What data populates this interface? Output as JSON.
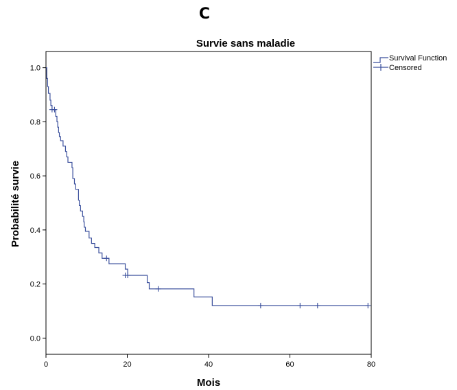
{
  "panel_letter": "C",
  "colors": {
    "series": "#3a4f9c",
    "axis": "#000000"
  },
  "chart_data": {
    "type": "line",
    "subtype": "kaplan-meier step",
    "title": "Survie sans maladie",
    "xlabel": "Mois",
    "ylabel": "Probabilité survie",
    "xlim": [
      0,
      80
    ],
    "ylim": [
      -0.06,
      1.06
    ],
    "xticks": [
      0,
      20,
      40,
      60,
      80
    ],
    "yticks": [
      0.0,
      0.2,
      0.4,
      0.6,
      0.8,
      1.0
    ],
    "xtick_labels": [
      "0",
      "20",
      "40",
      "60",
      "80"
    ],
    "ytick_labels": [
      "0.0",
      "0.2",
      "0.4",
      "0.6",
      "0.8",
      "1.0"
    ],
    "grid": false,
    "legend_position": "top-right, outside plot",
    "series": [
      {
        "name": "Survival Function",
        "points": [
          [
            0,
            1.0
          ],
          [
            0.2,
            0.96
          ],
          [
            0.4,
            0.93
          ],
          [
            0.6,
            0.905
          ],
          [
            1.0,
            0.88
          ],
          [
            1.2,
            0.86
          ],
          [
            1.5,
            0.845
          ],
          [
            2.4,
            0.82
          ],
          [
            2.7,
            0.8
          ],
          [
            2.9,
            0.78
          ],
          [
            3.1,
            0.76
          ],
          [
            3.3,
            0.745
          ],
          [
            3.6,
            0.73
          ],
          [
            4.2,
            0.71
          ],
          [
            4.8,
            0.69
          ],
          [
            5.1,
            0.67
          ],
          [
            5.4,
            0.65
          ],
          [
            6.4,
            0.63
          ],
          [
            6.6,
            0.59
          ],
          [
            7.0,
            0.57
          ],
          [
            7.3,
            0.55
          ],
          [
            8.0,
            0.51
          ],
          [
            8.2,
            0.49
          ],
          [
            8.5,
            0.47
          ],
          [
            9.0,
            0.45
          ],
          [
            9.3,
            0.43
          ],
          [
            9.4,
            0.41
          ],
          [
            9.7,
            0.395
          ],
          [
            10.6,
            0.37
          ],
          [
            11.2,
            0.35
          ],
          [
            12.0,
            0.335
          ],
          [
            13.0,
            0.315
          ],
          [
            13.8,
            0.295
          ],
          [
            15.5,
            0.275
          ],
          [
            19.5,
            0.255
          ],
          [
            20.1,
            0.232
          ],
          [
            24.9,
            0.205
          ],
          [
            25.4,
            0.182
          ],
          [
            36.4,
            0.152
          ],
          [
            40.9,
            0.12
          ],
          [
            79.2,
            0.12
          ]
        ]
      },
      {
        "name": "Censored",
        "marker": "+",
        "points": [
          [
            1.5,
            0.845
          ],
          [
            2.1,
            0.845
          ],
          [
            14.9,
            0.295
          ],
          [
            19.5,
            0.232
          ],
          [
            20.1,
            0.232
          ],
          [
            27.6,
            0.182
          ],
          [
            52.8,
            0.12
          ],
          [
            62.5,
            0.12
          ],
          [
            66.8,
            0.12
          ],
          [
            79.2,
            0.12
          ]
        ]
      }
    ]
  }
}
